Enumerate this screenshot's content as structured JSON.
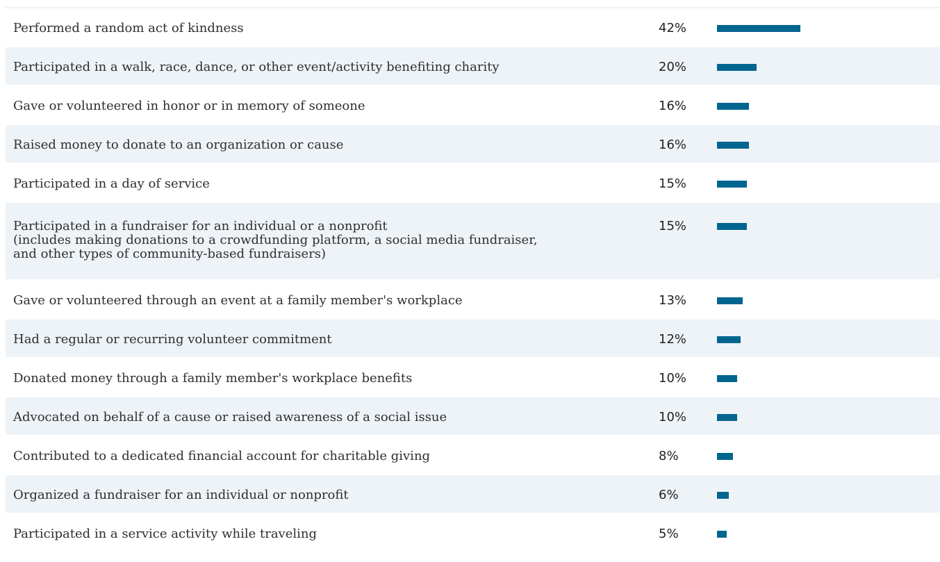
{
  "chart_data": {
    "type": "bar",
    "orientation": "horizontal",
    "color": "#00658f",
    "xlim": [
      0,
      100
    ],
    "categories": [
      "Performed a random act of kindness",
      "Participated in a walk, race, dance, or other event/activity benefiting charity",
      "Gave or volunteered in honor or in memory of someone",
      "Raised money to donate to an organization or cause",
      "Participated in a day of service",
      "Participated in a fundraiser for an individual or a nonprofit\n(includes making donations to a crowdfunding platform, a social media fundraiser,\nand other types of community-based fundraisers)",
      "Gave or volunteered through an event at a family member's workplace",
      "Had a regular or recurring volunteer commitment",
      "Donated money through a family member's workplace benefits",
      "Advocated on behalf of a cause or raised awareness of a social issue",
      "Contributed to a dedicated financial account for charitable giving",
      "Organized a fundraiser for an individual or nonprofit",
      "Participated in a service activity while traveling"
    ],
    "values": [
      42,
      20,
      16,
      16,
      15,
      15,
      13,
      12,
      10,
      10,
      8,
      6,
      5
    ],
    "value_labels": [
      "42%",
      "20%",
      "16%",
      "16%",
      "15%",
      "15%",
      "13%",
      "12%",
      "10%",
      "10%",
      "8%",
      "6%",
      "5%"
    ]
  }
}
